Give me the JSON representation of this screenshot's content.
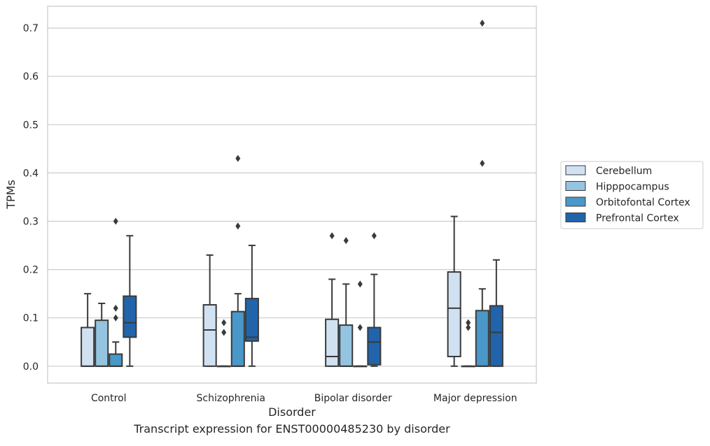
{
  "chart_data": {
    "type": "box",
    "xlabel": "Disorder",
    "ylabel": "TPMs",
    "caption": "Transcript expression for ENST00000485230 by disorder",
    "ylim": [
      -0.035,
      0.745
    ],
    "yticks": [
      "0.0",
      "0.1",
      "0.2",
      "0.3",
      "0.4",
      "0.5",
      "0.6",
      "0.7"
    ],
    "grid": "horizontal",
    "legend_position": "right",
    "categories": [
      "Control",
      "Schizophrenia",
      "Bipolar disorder",
      "Major depression"
    ],
    "series": [
      {
        "name": "Cerebellum",
        "color": "#d0e1f2",
        "boxes": [
          {
            "min": 0,
            "q1": 0,
            "median": 0,
            "q3": 0.08,
            "max": 0.15,
            "outliers": []
          },
          {
            "min": 0,
            "q1": 0,
            "median": 0.075,
            "q3": 0.127,
            "max": 0.23,
            "outliers": []
          },
          {
            "min": 0,
            "q1": 0,
            "median": 0.02,
            "q3": 0.097,
            "max": 0.18,
            "outliers": [
              0.27
            ]
          },
          {
            "min": 0,
            "q1": 0.02,
            "median": 0.12,
            "q3": 0.195,
            "max": 0.31,
            "outliers": []
          }
        ]
      },
      {
        "name": "Hipppocampus",
        "color": "#94c4df",
        "boxes": [
          {
            "min": 0,
            "q1": 0,
            "median": 0,
            "q3": 0.095,
            "max": 0.13,
            "outliers": []
          },
          {
            "min": 0,
            "q1": 0,
            "median": 0,
            "q3": 0,
            "max": 0,
            "outliers": [
              0.07,
              0.09
            ]
          },
          {
            "min": 0,
            "q1": 0,
            "median": 0,
            "q3": 0.085,
            "max": 0.17,
            "outliers": [
              0.26
            ]
          },
          {
            "min": 0,
            "q1": 0,
            "median": 0,
            "q3": 0,
            "max": 0,
            "outliers": [
              0.08,
              0.09
            ]
          }
        ]
      },
      {
        "name": "Orbitofontal Cortex",
        "color": "#4a98c9",
        "boxes": [
          {
            "min": 0,
            "q1": 0,
            "median": 0,
            "q3": 0.025,
            "max": 0.05,
            "outliers": [
              0.1,
              0.12,
              0.3
            ]
          },
          {
            "min": 0,
            "q1": 0,
            "median": 0,
            "q3": 0.113,
            "max": 0.15,
            "outliers": [
              0.29,
              0.43
            ]
          },
          {
            "min": 0,
            "q1": 0,
            "median": 0,
            "q3": 0,
            "max": 0,
            "outliers": [
              0.08,
              0.17
            ]
          },
          {
            "min": 0,
            "q1": 0,
            "median": 0,
            "q3": 0.115,
            "max": 0.16,
            "outliers": [
              0.42,
              0.71
            ]
          }
        ]
      },
      {
        "name": "Prefrontal Cortex",
        "color": "#2164ab",
        "boxes": [
          {
            "min": 0,
            "q1": 0.06,
            "median": 0.09,
            "q3": 0.145,
            "max": 0.27,
            "outliers": []
          },
          {
            "min": 0,
            "q1": 0.052,
            "median": 0.06,
            "q3": 0.14,
            "max": 0.25,
            "outliers": []
          },
          {
            "min": 0,
            "q1": 0.003,
            "median": 0.05,
            "q3": 0.08,
            "max": 0.19,
            "outliers": [
              0.27
            ]
          },
          {
            "min": 0,
            "q1": 0,
            "median": 0.07,
            "q3": 0.125,
            "max": 0.22,
            "outliers": []
          }
        ]
      }
    ]
  }
}
